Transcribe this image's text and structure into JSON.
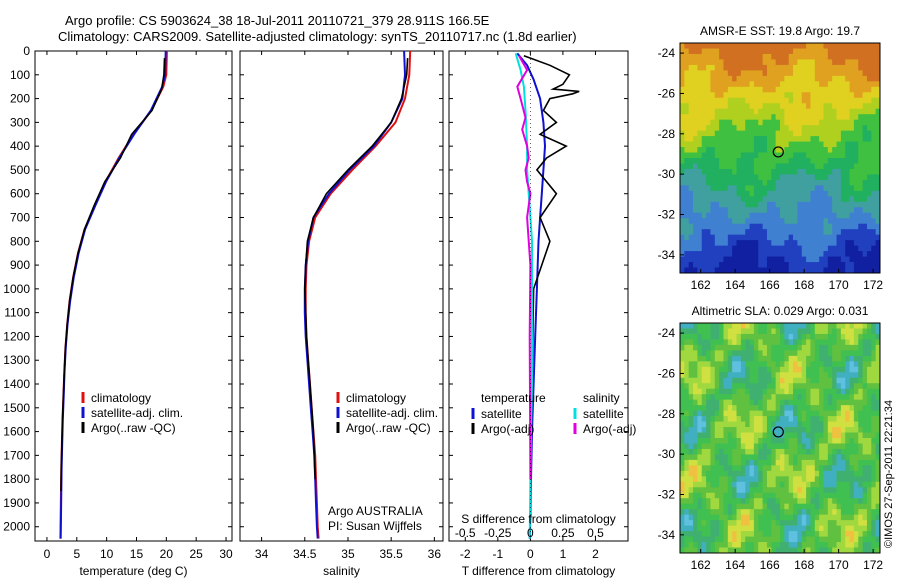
{
  "header": {
    "title_line1": "Argo profile: CS 5903624_38 18-Jul-2011 20110721_379 28.911S 166.5E",
    "title_line2": "Climatology: CARS2009. Satellite-adjusted climatology: synTS_20110717.nc (1.8d earlier)"
  },
  "credit": "©IMOS 27-Sep-2011 22:21:34",
  "depth_ticks": [
    0,
    100,
    200,
    300,
    400,
    500,
    600,
    700,
    800,
    900,
    1000,
    1100,
    1200,
    1300,
    1400,
    1500,
    1600,
    1700,
    1800,
    1900,
    2000
  ],
  "colors": {
    "climatology": "#e01010",
    "satellite": "#1010d0",
    "argo": "#000000",
    "sat_salinity": "#00e0e0",
    "argo_salinity": "#e000e0"
  },
  "chart_data": [
    {
      "type": "line",
      "xlabel": "temperature (deg C)",
      "xlim": [
        -2,
        31
      ],
      "xticks": [
        0,
        5,
        10,
        15,
        20,
        25,
        30
      ],
      "ylim": [
        2060,
        0
      ],
      "legend": [
        "climatology",
        "satellite-adj. clim.",
        "Argo(..raw -QC)"
      ],
      "series": [
        {
          "name": "climatology",
          "color": "#e01010",
          "x": [
            20.1,
            20.0,
            19.5,
            17.5,
            14.5,
            12.0,
            9.8,
            8.0,
            6.3,
            5.2,
            4.4,
            3.8,
            3.4,
            3.1,
            2.9,
            2.75,
            2.6,
            2.5,
            2.4,
            2.35,
            2.3,
            2.25
          ],
          "y": [
            0,
            100,
            150,
            250,
            350,
            450,
            550,
            650,
            750,
            850,
            950,
            1050,
            1150,
            1250,
            1350,
            1450,
            1550,
            1650,
            1750,
            1850,
            1950,
            2050
          ]
        },
        {
          "name": "satellite-adj. clim.",
          "color": "#1010d0",
          "x": [
            19.9,
            19.8,
            19.3,
            17.4,
            14.6,
            12.1,
            9.9,
            8.1,
            6.4,
            5.3,
            4.5,
            3.9,
            3.45,
            3.15,
            2.95,
            2.8,
            2.65,
            2.55,
            2.45,
            2.4,
            2.35,
            2.3
          ],
          "y": [
            0,
            100,
            150,
            250,
            350,
            450,
            550,
            650,
            750,
            850,
            950,
            1050,
            1150,
            1250,
            1350,
            1450,
            1550,
            1650,
            1750,
            1850,
            1950,
            2050
          ]
        },
        {
          "name": "Argo(..raw -QC)",
          "color": "#000000",
          "x": [
            19.7,
            19.6,
            19.2,
            17.6,
            14.2,
            12.3,
            9.7,
            7.9,
            6.3,
            5.2,
            4.4,
            3.8,
            3.4,
            3.1,
            2.9,
            2.75,
            2.6,
            2.5,
            2.4,
            2.35
          ],
          "y": [
            30,
            100,
            160,
            250,
            350,
            450,
            550,
            650,
            750,
            850,
            950,
            1050,
            1150,
            1250,
            1350,
            1450,
            1550,
            1650,
            1750,
            1850
          ]
        }
      ]
    },
    {
      "type": "line",
      "xlabel": "salinity",
      "xlim": [
        33.75,
        36.1
      ],
      "xticks": [
        34,
        34.5,
        35,
        35.5,
        36
      ],
      "ylim": [
        2060,
        0
      ],
      "legend": [
        "climatology",
        "satellite-adj. clim.",
        "Argo(..raw -QC)"
      ],
      "annotation": [
        "Argo AUSTRALIA",
        "PI: Susan Wijffels"
      ],
      "series": [
        {
          "name": "climatology",
          "color": "#e01010",
          "x": [
            35.72,
            35.71,
            35.66,
            35.55,
            35.32,
            35.05,
            34.8,
            34.62,
            34.55,
            34.52,
            34.51,
            34.51,
            34.52,
            34.54,
            34.56,
            34.58,
            34.6,
            34.62,
            34.63,
            34.64,
            34.65,
            34.66
          ],
          "y": [
            0,
            100,
            200,
            300,
            400,
            500,
            600,
            700,
            800,
            900,
            1000,
            1100,
            1200,
            1300,
            1400,
            1500,
            1600,
            1700,
            1800,
            1900,
            2000,
            2050
          ]
        },
        {
          "name": "satellite-adj. clim.",
          "color": "#1010d0",
          "x": [
            35.65,
            35.66,
            35.63,
            35.5,
            35.3,
            35.02,
            34.78,
            34.6,
            34.54,
            34.51,
            34.5,
            34.5,
            34.51,
            34.53,
            34.55,
            34.57,
            34.59,
            34.61,
            34.62,
            34.63,
            34.64,
            34.65
          ],
          "y": [
            0,
            100,
            200,
            300,
            400,
            500,
            600,
            700,
            800,
            900,
            1000,
            1100,
            1200,
            1300,
            1400,
            1500,
            1600,
            1700,
            1800,
            1900,
            2000,
            2050
          ]
        },
        {
          "name": "Argo(..raw -QC)",
          "color": "#000000",
          "x": [
            35.69,
            35.68,
            35.62,
            35.5,
            35.28,
            35.0,
            34.75,
            34.6,
            34.53,
            34.51,
            34.5,
            34.51,
            34.52,
            34.54,
            34.56,
            34.58,
            34.6,
            34.61,
            34.62
          ],
          "y": [
            30,
            100,
            200,
            300,
            400,
            500,
            600,
            700,
            800,
            900,
            1000,
            1100,
            1200,
            1300,
            1400,
            1500,
            1600,
            1700,
            1800
          ]
        }
      ]
    },
    {
      "type": "line",
      "xlabel": "T difference from climatology",
      "xlabel_top": "S difference from climatology",
      "xlim": [
        -2.5,
        3.0
      ],
      "xticks": [
        -2,
        -1,
        0,
        1,
        2
      ],
      "top_tick_labels": [
        "-0.5",
        "-0.25",
        "0",
        "0.25",
        "0.5"
      ],
      "ylim": [
        2060,
        0
      ],
      "legend_temperature": [
        "temperature",
        "satellite",
        "Argo(-adj)"
      ],
      "legend_salinity": [
        "salinity",
        "satellite",
        "Argo(-adj)"
      ],
      "series": [
        {
          "name": "temperature satellite",
          "color": "#1010d0",
          "x": [
            -0.4,
            -0.1,
            0.1,
            0.3,
            0.4,
            0.45,
            0.4,
            0.35,
            0.3,
            0.25,
            0.2,
            0.15,
            0.1,
            0.05,
            0.02,
            0.0,
            -0.02
          ],
          "y": [
            10,
            60,
            120,
            200,
            300,
            400,
            500,
            600,
            700,
            800,
            1000,
            1200,
            1400,
            1600,
            1800,
            1950,
            2050
          ]
        },
        {
          "name": "temperature Argo(-adj)",
          "color": "#000000",
          "x": [
            -0.2,
            0.6,
            1.2,
            1.0,
            0.7,
            1.5,
            1.3,
            0.6,
            0.4,
            0.8,
            0.3,
            1.1,
            0.5,
            0.2,
            0.8,
            0.3,
            0.6,
            0.1,
            0.0
          ],
          "y": [
            20,
            60,
            100,
            140,
            160,
            170,
            180,
            200,
            250,
            300,
            350,
            400,
            450,
            500,
            600,
            700,
            800,
            1000,
            1800
          ]
        },
        {
          "name": "salinity satellite",
          "color": "#00e0e0",
          "x": [
            -0.45,
            -0.3,
            -0.2,
            -0.15,
            -0.1,
            -0.1,
            -0.05,
            0.0,
            0.05,
            0.05,
            0.05,
            0.05,
            0.02,
            0.0,
            -0.02
          ],
          "y": [
            10,
            80,
            150,
            250,
            400,
            500,
            600,
            700,
            800,
            1000,
            1200,
            1400,
            1600,
            1800,
            2050
          ]
        },
        {
          "name": "salinity Argo(-adj)",
          "color": "#e000e0",
          "x": [
            -0.35,
            -0.1,
            -0.4,
            -0.3,
            -0.15,
            -0.25,
            -0.1,
            -0.05,
            -0.15,
            -0.1,
            0.0,
            -0.05,
            -0.1,
            0.0,
            -0.02,
            0.0
          ],
          "y": [
            20,
            80,
            150,
            200,
            280,
            330,
            400,
            450,
            500,
            550,
            600,
            650,
            700,
            900,
            1200,
            1800
          ]
        }
      ]
    },
    {
      "type": "heatmap",
      "title": "AMSR-E SST: 19.8 Argo: 19.7",
      "xticks": [
        162,
        164,
        166,
        168,
        170,
        172
      ],
      "yticks": [
        -24,
        -26,
        -28,
        -30,
        -32,
        -34
      ],
      "xlim": [
        160.8,
        172.4
      ],
      "ylim": [
        -34.9,
        -23.5
      ],
      "marker": {
        "lon": 166.5,
        "lat": -28.9
      },
      "colors": [
        "#d07020",
        "#e0a020",
        "#e0d020",
        "#b0d020",
        "#40c040",
        "#20b060",
        "#40a0a0",
        "#4080d0",
        "#2040c0",
        "#1020a0"
      ]
    },
    {
      "type": "heatmap",
      "title": "Altimetric SLA: 0.029 Argo: 0.031",
      "xticks": [
        162,
        164,
        166,
        168,
        170,
        172
      ],
      "yticks": [
        -24,
        -26,
        -28,
        -30,
        -32,
        -34
      ],
      "xlim": [
        160.8,
        172.4
      ],
      "ylim": [
        -34.9,
        -23.5
      ],
      "marker": {
        "lon": 166.5,
        "lat": -28.9
      },
      "colors": [
        "#f0c040",
        "#d0e040",
        "#a0d840",
        "#60c040",
        "#40c050",
        "#40b070",
        "#40b0c0",
        "#60c0e0"
      ]
    }
  ]
}
